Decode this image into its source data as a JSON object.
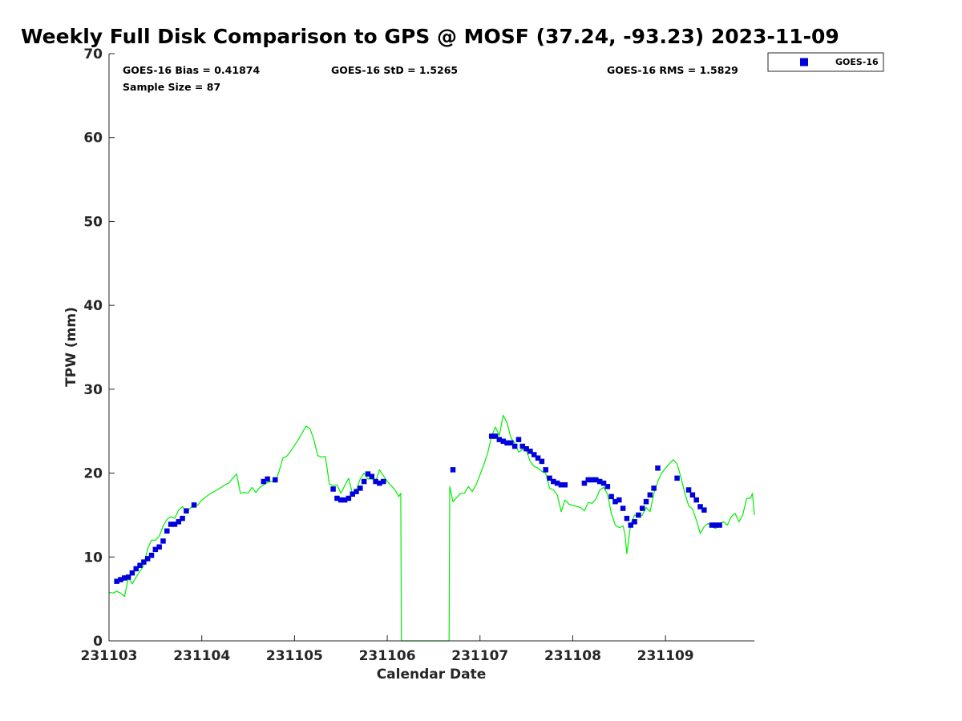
{
  "chart_data": {
    "type": "scatter",
    "title": "Weekly Full Disk Comparison to GPS @ MOSF (37.24, -93.23) 2023-11-09",
    "xlabel": "Calendar Date",
    "ylabel": "TPW (mm)",
    "xlim": [
      "2023-11-03 00:00",
      "2023-11-09 23:00"
    ],
    "ylim": [
      0,
      70
    ],
    "x_tick_labels": [
      "231103",
      "231104",
      "231105",
      "231106",
      "231107",
      "231108",
      "231109"
    ],
    "x_tick_dates": [
      "2023-11-03",
      "2023-11-04",
      "2023-11-05",
      "2023-11-06",
      "2023-11-07",
      "2023-11-08",
      "2023-11-09"
    ],
    "y_ticks": [
      0,
      10,
      20,
      30,
      40,
      50,
      60,
      70
    ],
    "y_tick_labels": [
      "0",
      "10",
      "20",
      "30",
      "40",
      "50",
      "60",
      "70"
    ],
    "grid": false,
    "legend_position": "top-right, outside plot",
    "stats": {
      "bias": "GOES-16 Bias = 0.41874",
      "std": "GOES-16 StD = 1.5265",
      "rms": "GOES-16 RMS = 1.5829",
      "sample": "Sample Size = 87"
    },
    "series": [
      {
        "name": "GOES-16",
        "kind": "scatter",
        "marker": "square",
        "color": "#0000dd",
        "points": [
          [
            "2023-11-03 02:00",
            7.1
          ],
          [
            "2023-11-03 03:00",
            7.3
          ],
          [
            "2023-11-03 04:00",
            7.5
          ],
          [
            "2023-11-03 05:00",
            7.6
          ],
          [
            "2023-11-03 06:00",
            8.1
          ],
          [
            "2023-11-03 07:00",
            8.6
          ],
          [
            "2023-11-03 08:00",
            9.0
          ],
          [
            "2023-11-03 09:00",
            9.4
          ],
          [
            "2023-11-03 10:00",
            9.8
          ],
          [
            "2023-11-03 11:00",
            10.2
          ],
          [
            "2023-11-03 12:00",
            10.9
          ],
          [
            "2023-11-03 13:00",
            11.2
          ],
          [
            "2023-11-03 14:00",
            11.9
          ],
          [
            "2023-11-03 15:00",
            13.1
          ],
          [
            "2023-11-03 16:00",
            13.9
          ],
          [
            "2023-11-03 17:00",
            13.9
          ],
          [
            "2023-11-03 18:00",
            14.2
          ],
          [
            "2023-11-03 19:00",
            14.6
          ],
          [
            "2023-11-03 20:00",
            15.5
          ],
          [
            "2023-11-03 22:00",
            16.2
          ],
          [
            "2023-11-04 16:00",
            19.0
          ],
          [
            "2023-11-04 17:00",
            19.3
          ],
          [
            "2023-11-04 19:00",
            19.2
          ],
          [
            "2023-11-05 10:00",
            18.1
          ],
          [
            "2023-11-05 11:00",
            17.0
          ],
          [
            "2023-11-05 12:00",
            16.8
          ],
          [
            "2023-11-05 13:00",
            16.8
          ],
          [
            "2023-11-05 14:00",
            17.0
          ],
          [
            "2023-11-05 15:00",
            17.5
          ],
          [
            "2023-11-05 16:00",
            17.8
          ],
          [
            "2023-11-05 17:00",
            18.2
          ],
          [
            "2023-11-05 18:00",
            19.0
          ],
          [
            "2023-11-05 19:00",
            19.9
          ],
          [
            "2023-11-05 20:00",
            19.6
          ],
          [
            "2023-11-05 21:00",
            19.0
          ],
          [
            "2023-11-05 22:00",
            18.8
          ],
          [
            "2023-11-05 23:00",
            19.0
          ],
          [
            "2023-11-06 17:00",
            20.4
          ],
          [
            "2023-11-07 03:00",
            24.4
          ],
          [
            "2023-11-07 04:00",
            24.4
          ],
          [
            "2023-11-07 05:00",
            24.0
          ],
          [
            "2023-11-07 06:00",
            23.8
          ],
          [
            "2023-11-07 07:00",
            23.6
          ],
          [
            "2023-11-07 08:00",
            23.6
          ],
          [
            "2023-11-07 09:00",
            23.2
          ],
          [
            "2023-11-07 10:00",
            24.0
          ],
          [
            "2023-11-07 11:00",
            23.2
          ],
          [
            "2023-11-07 12:00",
            22.9
          ],
          [
            "2023-11-07 13:00",
            22.6
          ],
          [
            "2023-11-07 14:00",
            22.2
          ],
          [
            "2023-11-07 15:00",
            21.8
          ],
          [
            "2023-11-07 16:00",
            21.4
          ],
          [
            "2023-11-07 17:00",
            20.4
          ],
          [
            "2023-11-07 18:00",
            19.4
          ],
          [
            "2023-11-07 19:00",
            19.0
          ],
          [
            "2023-11-07 20:00",
            18.8
          ],
          [
            "2023-11-07 21:00",
            18.6
          ],
          [
            "2023-11-07 22:00",
            18.6
          ],
          [
            "2023-11-08 03:00",
            18.8
          ],
          [
            "2023-11-08 04:00",
            19.2
          ],
          [
            "2023-11-08 05:00",
            19.2
          ],
          [
            "2023-11-08 06:00",
            19.2
          ],
          [
            "2023-11-08 07:00",
            19.0
          ],
          [
            "2023-11-08 08:00",
            18.8
          ],
          [
            "2023-11-08 09:00",
            18.4
          ],
          [
            "2023-11-08 10:00",
            17.2
          ],
          [
            "2023-11-08 11:00",
            16.6
          ],
          [
            "2023-11-08 12:00",
            16.8
          ],
          [
            "2023-11-08 13:00",
            15.8
          ],
          [
            "2023-11-08 14:00",
            14.6
          ],
          [
            "2023-11-08 15:00",
            13.8
          ],
          [
            "2023-11-08 16:00",
            14.2
          ],
          [
            "2023-11-08 17:00",
            15.0
          ],
          [
            "2023-11-08 18:00",
            15.8
          ],
          [
            "2023-11-08 19:00",
            16.6
          ],
          [
            "2023-11-08 20:00",
            17.4
          ],
          [
            "2023-11-08 21:00",
            18.2
          ],
          [
            "2023-11-08 22:00",
            20.6
          ],
          [
            "2023-11-09 03:00",
            19.4
          ],
          [
            "2023-11-09 06:00",
            18.0
          ],
          [
            "2023-11-09 07:00",
            17.4
          ],
          [
            "2023-11-09 08:00",
            16.8
          ],
          [
            "2023-11-09 09:00",
            16.0
          ],
          [
            "2023-11-09 10:00",
            15.6
          ],
          [
            "2023-11-09 12:00",
            13.8
          ],
          [
            "2023-11-09 13:00",
            13.8
          ],
          [
            "2023-11-09 14:00",
            13.8
          ]
        ]
      },
      {
        "name": "",
        "kind": "line",
        "color": "#00ee00",
        "points": [
          [
            "2023-11-03 00:00",
            5.8
          ],
          [
            "2023-11-03 01:00",
            5.7
          ],
          [
            "2023-11-03 02:00",
            5.9
          ],
          [
            "2023-11-03 03:00",
            5.7
          ],
          [
            "2023-11-03 04:00",
            5.3
          ],
          [
            "2023-11-03 05:00",
            7.5
          ],
          [
            "2023-11-03 06:00",
            6.8
          ],
          [
            "2023-11-03 07:00",
            7.6
          ],
          [
            "2023-11-03 08:00",
            8.3
          ],
          [
            "2023-11-03 09:00",
            9.0
          ],
          [
            "2023-11-03 10:00",
            11.0
          ],
          [
            "2023-11-03 11:00",
            12.0
          ],
          [
            "2023-11-03 12:00",
            12.0
          ],
          [
            "2023-11-03 13:00",
            12.5
          ],
          [
            "2023-11-03 14:00",
            13.7
          ],
          [
            "2023-11-03 15:00",
            14.5
          ],
          [
            "2023-11-03 16:00",
            14.8
          ],
          [
            "2023-11-03 17:00",
            14.6
          ],
          [
            "2023-11-03 18:00",
            15.6
          ],
          [
            "2023-11-03 19:00",
            16.0
          ],
          [
            "2023-11-03 20:00",
            15.5
          ],
          [
            "2023-11-03 21:00",
            15.8
          ],
          [
            "2023-11-03 22:00",
            16.3
          ],
          [
            "2023-11-03 23:00",
            16.2
          ],
          [
            "2023-11-04 00:00",
            16.8
          ],
          [
            "2023-11-04 02:00",
            17.5
          ],
          [
            "2023-11-04 04:00",
            18.0
          ],
          [
            "2023-11-04 06:00",
            18.6
          ],
          [
            "2023-11-04 07:00",
            18.8
          ],
          [
            "2023-11-04 08:00",
            19.4
          ],
          [
            "2023-11-04 09:00",
            19.9
          ],
          [
            "2023-11-04 10:00",
            17.6
          ],
          [
            "2023-11-04 11:00",
            17.7
          ],
          [
            "2023-11-04 12:00",
            17.6
          ],
          [
            "2023-11-04 13:00",
            18.3
          ],
          [
            "2023-11-04 14:00",
            17.7
          ],
          [
            "2023-11-04 15:00",
            18.3
          ],
          [
            "2023-11-04 16:00",
            18.6
          ],
          [
            "2023-11-04 17:00",
            18.9
          ],
          [
            "2023-11-04 18:00",
            19.0
          ],
          [
            "2023-11-04 19:00",
            18.9
          ],
          [
            "2023-11-04 20:00",
            20.2
          ],
          [
            "2023-11-04 21:00",
            21.8
          ],
          [
            "2023-11-04 22:00",
            22.0
          ],
          [
            "2023-11-04 23:00",
            22.6
          ],
          [
            "2023-11-05 01:00",
            24.0
          ],
          [
            "2023-11-05 02:00",
            24.8
          ],
          [
            "2023-11-05 03:00",
            25.6
          ],
          [
            "2023-11-05 04:00",
            25.3
          ],
          [
            "2023-11-05 05:00",
            24.0
          ],
          [
            "2023-11-05 06:00",
            22.1
          ],
          [
            "2023-11-05 07:00",
            21.9
          ],
          [
            "2023-11-05 08:00",
            22.0
          ],
          [
            "2023-11-05 09:00",
            18.7
          ],
          [
            "2023-11-05 10:00",
            18.5
          ],
          [
            "2023-11-05 11:00",
            18.6
          ],
          [
            "2023-11-05 12:00",
            17.6
          ],
          [
            "2023-11-05 13:00",
            18.5
          ],
          [
            "2023-11-05 14:00",
            19.4
          ],
          [
            "2023-11-05 15:00",
            17.5
          ],
          [
            "2023-11-05 16:00",
            18.0
          ],
          [
            "2023-11-05 17:00",
            19.3
          ],
          [
            "2023-11-05 18:00",
            20.0
          ],
          [
            "2023-11-05 19:00",
            19.3
          ],
          [
            "2023-11-05 20:00",
            19.3
          ],
          [
            "2023-11-05 21:00",
            19.0
          ],
          [
            "2023-11-05 22:00",
            20.4
          ],
          [
            "2023-11-05 23:00",
            19.7
          ],
          [
            "2023-11-06 00:00",
            19.0
          ],
          [
            "2023-11-06 01:00",
            18.5
          ],
          [
            "2023-11-06 02:00",
            18.0
          ],
          [
            "2023-11-06 03:00",
            17.2
          ],
          [
            "2023-11-06 03:30",
            17.6
          ],
          [
            "2023-11-06 03:40",
            0.0
          ],
          [
            "2023-11-06 16:00",
            0.0
          ],
          [
            "2023-11-06 16:10",
            18.4
          ],
          [
            "2023-11-06 17:00",
            16.6
          ],
          [
            "2023-11-06 18:00",
            17.1
          ],
          [
            "2023-11-06 19:00",
            17.6
          ],
          [
            "2023-11-06 20:00",
            17.6
          ],
          [
            "2023-11-06 21:00",
            18.4
          ],
          [
            "2023-11-06 22:00",
            17.8
          ],
          [
            "2023-11-06 23:00",
            18.6
          ],
          [
            "2023-11-07 00:00",
            19.8
          ],
          [
            "2023-11-07 01:00",
            21.0
          ],
          [
            "2023-11-07 02:00",
            22.4
          ],
          [
            "2023-11-07 03:00",
            24.4
          ],
          [
            "2023-11-07 04:00",
            25.5
          ],
          [
            "2023-11-07 05:00",
            24.5
          ],
          [
            "2023-11-07 06:00",
            26.9
          ],
          [
            "2023-11-07 07:00",
            26.0
          ],
          [
            "2023-11-07 08:00",
            24.2
          ],
          [
            "2023-11-07 09:00",
            23.6
          ],
          [
            "2023-11-07 10:00",
            22.5
          ],
          [
            "2023-11-07 11:00",
            22.8
          ],
          [
            "2023-11-07 12:00",
            22.7
          ],
          [
            "2023-11-07 13:00",
            21.4
          ],
          [
            "2023-11-07 14:00",
            20.8
          ],
          [
            "2023-11-07 15:00",
            20.6
          ],
          [
            "2023-11-07 16:00",
            20.2
          ],
          [
            "2023-11-07 17:00",
            20.0
          ],
          [
            "2023-11-07 18:00",
            18.2
          ],
          [
            "2023-11-07 19:00",
            18.0
          ],
          [
            "2023-11-07 20:00",
            17.4
          ],
          [
            "2023-11-07 21:00",
            15.4
          ],
          [
            "2023-11-07 22:00",
            16.8
          ],
          [
            "2023-11-07 23:00",
            16.3
          ],
          [
            "2023-11-08 02:00",
            15.9
          ],
          [
            "2023-11-08 03:00",
            15.5
          ],
          [
            "2023-11-08 04:00",
            16.5
          ],
          [
            "2023-11-08 05:00",
            16.4
          ],
          [
            "2023-11-08 06:00",
            16.9
          ],
          [
            "2023-11-08 07:00",
            18.0
          ],
          [
            "2023-11-08 08:00",
            18.3
          ],
          [
            "2023-11-08 09:00",
            17.5
          ],
          [
            "2023-11-08 10:00",
            15.2
          ],
          [
            "2023-11-08 11:00",
            13.8
          ],
          [
            "2023-11-08 12:00",
            13.5
          ],
          [
            "2023-11-08 13:00",
            13.7
          ],
          [
            "2023-11-08 13:30",
            12.8
          ],
          [
            "2023-11-08 14:00",
            10.4
          ],
          [
            "2023-11-08 15:00",
            13.9
          ],
          [
            "2023-11-08 16:00",
            15.0
          ],
          [
            "2023-11-08 17:00",
            14.8
          ],
          [
            "2023-11-08 18:00",
            15.0
          ],
          [
            "2023-11-08 19:00",
            15.9
          ],
          [
            "2023-11-08 20:00",
            15.4
          ],
          [
            "2023-11-08 21:00",
            17.6
          ],
          [
            "2023-11-08 22:00",
            19.0
          ],
          [
            "2023-11-08 23:00",
            20.0
          ],
          [
            "2023-11-09 00:00",
            20.6
          ],
          [
            "2023-11-09 02:00",
            21.6
          ],
          [
            "2023-11-09 03:00",
            21.1
          ],
          [
            "2023-11-09 04:00",
            19.5
          ],
          [
            "2023-11-09 05:00",
            17.6
          ],
          [
            "2023-11-09 06:00",
            16.1
          ],
          [
            "2023-11-09 07:00",
            15.7
          ],
          [
            "2023-11-09 08:00",
            14.4
          ],
          [
            "2023-11-09 09:00",
            12.8
          ],
          [
            "2023-11-09 10:00",
            13.6
          ],
          [
            "2023-11-09 11:00",
            14.0
          ],
          [
            "2023-11-09 12:00",
            13.6
          ],
          [
            "2023-11-09 13:00",
            13.4
          ],
          [
            "2023-11-09 14:00",
            14.0
          ],
          [
            "2023-11-09 15:00",
            14.2
          ],
          [
            "2023-11-09 16:00",
            13.8
          ],
          [
            "2023-11-09 17:00",
            14.8
          ],
          [
            "2023-11-09 18:00",
            15.2
          ],
          [
            "2023-11-09 19:00",
            14.2
          ],
          [
            "2023-11-09 20:00",
            15.0
          ],
          [
            "2023-11-09 21:00",
            17.0
          ],
          [
            "2023-11-09 22:00",
            17.0
          ],
          [
            "2023-11-09 22:30",
            17.6
          ],
          [
            "2023-11-09 23:00",
            15.0
          ]
        ]
      }
    ]
  }
}
